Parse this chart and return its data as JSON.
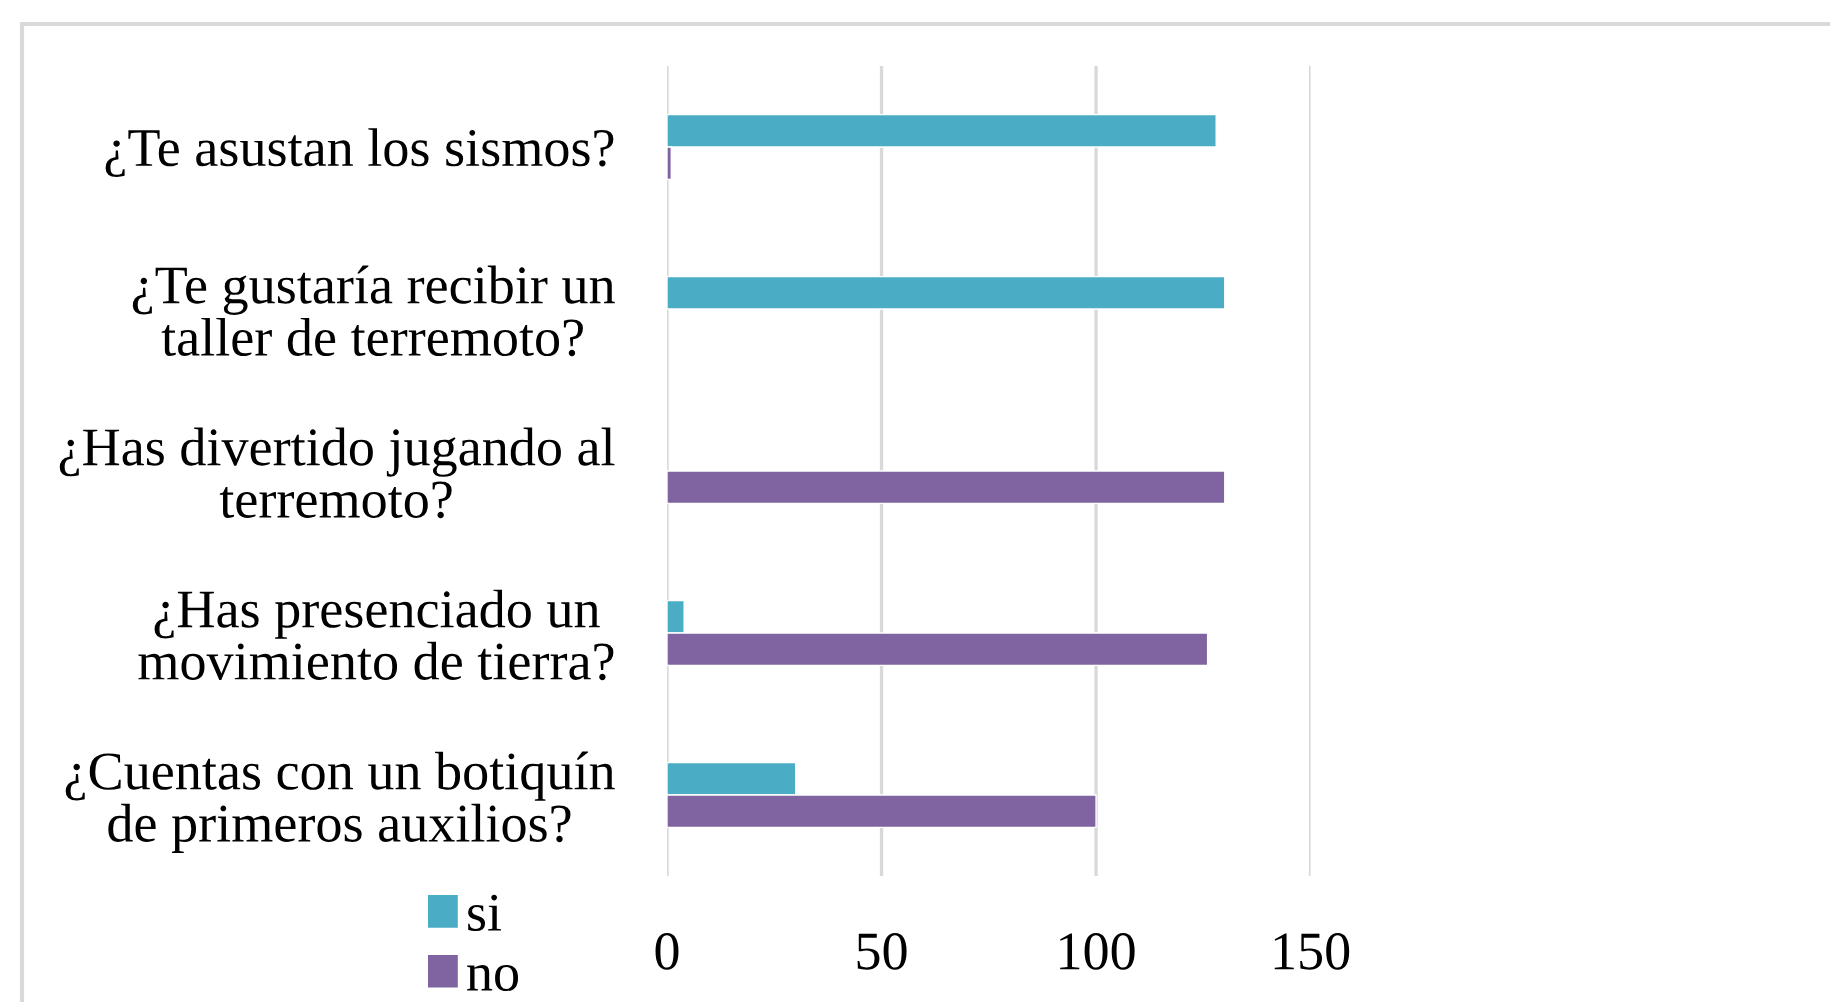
{
  "chart_data": {
    "type": "bar",
    "orientation": "horizontal",
    "categories": [
      "¿Te asustan los sismos?",
      "¿Te gustaría recibir un\ntaller de terremoto?",
      "¿Has divertido jugando al\nterremoto?",
      "¿Has presenciado un\nmovimiento de tierra?",
      "¿Cuentas con un botiquín\nde primeros auxilios?"
    ],
    "series": [
      {
        "name": "si",
        "color": "#4bacc6",
        "values": [
          128,
          130,
          null,
          4,
          30
        ]
      },
      {
        "name": "no",
        "color": "#8064a2",
        "values": [
          1,
          null,
          130,
          126,
          100
        ]
      }
    ],
    "xlim": [
      0,
      150
    ],
    "xticks": [
      0,
      50,
      100,
      150
    ],
    "grid": "x",
    "legend": "bottom left"
  }
}
